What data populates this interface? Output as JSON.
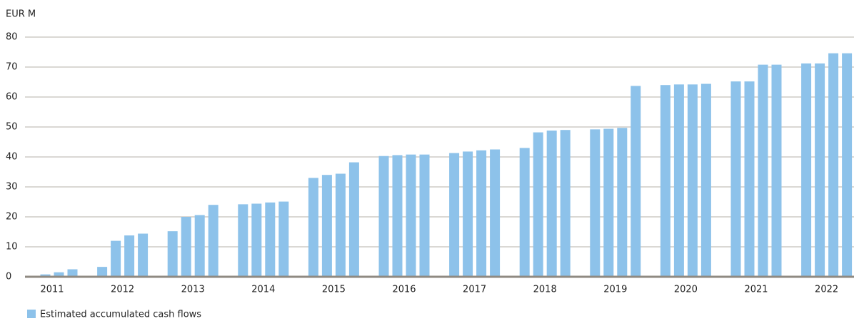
{
  "chart_data": {
    "type": "bar",
    "y_axis_label": "EUR M",
    "categories": [
      "2011",
      "2012",
      "2013",
      "2014",
      "2015",
      "2016",
      "2017",
      "2018",
      "2019",
      "2020",
      "2021",
      "2022"
    ],
    "series": [
      {
        "name": "Estimated accumulated cash flows",
        "color": "#8dc2ea",
        "values": [
          [
            0,
            0.8,
            1.5,
            2.5
          ],
          [
            3.3,
            12,
            13.8,
            14.4
          ],
          [
            15.2,
            20,
            20.6,
            24
          ],
          [
            24.2,
            24.4,
            24.8,
            25.1
          ],
          [
            33,
            34,
            34.4,
            38.2
          ],
          [
            40.3,
            40.6,
            40.8,
            40.8
          ],
          [
            41.3,
            41.8,
            42.2,
            42.5
          ],
          [
            43,
            48.2,
            48.8,
            49
          ],
          [
            49.2,
            49.4,
            49.7,
            63.7
          ],
          [
            64,
            64.2,
            64.2,
            64.4
          ],
          [
            65.2,
            65.2,
            70.8,
            70.8
          ],
          [
            71.2,
            71.2,
            74.6,
            74.6
          ]
        ]
      }
    ],
    "ylim": [
      0,
      80
    ],
    "yticks": [
      0,
      10,
      20,
      30,
      40,
      50,
      60,
      70,
      80
    ],
    "grid": true,
    "legend": "bottom-left"
  }
}
